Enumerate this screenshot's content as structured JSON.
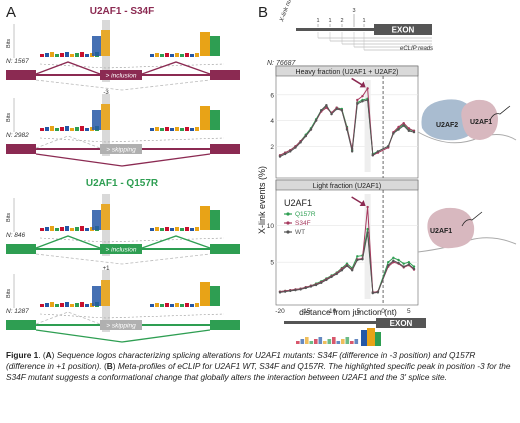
{
  "panel_a": {
    "letter": "A",
    "mutants": [
      {
        "title": "U2AF1 - S34F",
        "color": "#8b2a52",
        "tracks": [
          {
            "n_label": "N: 1567",
            "event": "> inclusion",
            "axis_label": "Bits",
            "highlight": ""
          },
          {
            "n_label": "N: 2982",
            "event": "> skipping",
            "axis_label": "Bits",
            "highlight": "-3"
          }
        ]
      },
      {
        "title": "U2AF1 - Q157R",
        "color": "#2e9e52",
        "tracks": [
          {
            "n_label": "N: 846",
            "event": "> inclusion",
            "axis_label": "Bits",
            "highlight": ""
          },
          {
            "n_label": "N: 1287",
            "event": "> skipping",
            "axis_label": "Bits",
            "highlight": "+1"
          }
        ]
      }
    ]
  },
  "panel_b": {
    "letter": "B",
    "xlink_number_label": "X-link number",
    "xlink_numbers": [
      "1",
      "1",
      "2",
      "3",
      "1"
    ],
    "exon_label": "EXON",
    "eclip_reads_label": "eCLIP reads",
    "n_label": "N: 76687",
    "ylabel": "X-link events (%)",
    "xlabel": "distance from junction (nt)",
    "legend_title": "U2AF1",
    "legend": [
      {
        "name": "Q157R",
        "color": "#2e9e52"
      },
      {
        "name": "S34F",
        "color": "#a6395e"
      },
      {
        "name": "WT",
        "color": "#555555"
      }
    ],
    "protein_labels": {
      "u2af2": "U2AF2",
      "u2af1_top": "U2AF1",
      "u2af1_bottom": "U2AF1"
    }
  },
  "chart_data": [
    {
      "type": "line",
      "title": "Heavy fraction (U2AF1 + U2AF2)",
      "xlabel": "distance from junction (nt)",
      "ylabel": "X-link events (%)",
      "xlim": [
        -20,
        6
      ],
      "ylim": [
        0,
        7
      ],
      "yticks": [
        2,
        4,
        6
      ],
      "x": [
        -20,
        -19,
        -18,
        -17,
        -16,
        -15,
        -14,
        -13,
        -12,
        -11,
        -10,
        -9,
        -8,
        -7,
        -6,
        -5,
        -4,
        -3,
        -2,
        -1,
        1,
        2,
        3,
        4,
        5,
        6
      ],
      "series": [
        {
          "name": "Q157R",
          "color": "#2e9e52",
          "values": [
            1.3,
            1.5,
            1.7,
            2.0,
            2.4,
            2.9,
            3.4,
            4.1,
            4.8,
            5.1,
            4.6,
            5.0,
            4.9,
            3.5,
            1.7,
            5.4,
            5.6,
            5.7,
            1.4,
            1.6,
            2.0,
            3.0,
            3.4,
            3.7,
            3.3,
            3.2
          ]
        },
        {
          "name": "S34F",
          "color": "#a6395e",
          "values": [
            1.3,
            1.5,
            1.7,
            2.0,
            2.4,
            2.8,
            3.3,
            4.0,
            4.7,
            5.0,
            4.6,
            5.0,
            4.8,
            3.4,
            1.8,
            5.6,
            5.9,
            6.5,
            1.3,
            1.5,
            1.9,
            3.1,
            3.5,
            3.8,
            3.4,
            3.2
          ]
        },
        {
          "name": "WT",
          "color": "#555555",
          "values": [
            1.2,
            1.4,
            1.6,
            1.9,
            2.3,
            2.8,
            3.3,
            4.0,
            4.8,
            5.2,
            4.5,
            4.9,
            4.8,
            3.3,
            1.6,
            5.3,
            5.5,
            5.6,
            1.3,
            1.6,
            2.0,
            3.0,
            3.3,
            3.6,
            3.2,
            3.1
          ]
        }
      ],
      "vline_x": 0,
      "highlight_x": -3
    },
    {
      "type": "line",
      "title": "Light fraction (U2AF1)",
      "xlabel": "distance from junction (nt)",
      "ylabel": "X-link events (%)",
      "xlim": [
        -20,
        6
      ],
      "ylim": [
        0,
        14
      ],
      "yticks": [
        5,
        10
      ],
      "xticks": [
        -20,
        -15,
        -10,
        -5,
        0,
        5
      ],
      "x": [
        -20,
        -19,
        -18,
        -17,
        -16,
        -15,
        -14,
        -13,
        -12,
        -11,
        -10,
        -9,
        -8,
        -7,
        -6,
        -5,
        -4,
        -3,
        -2,
        -1,
        1,
        2,
        3,
        4,
        5,
        6
      ],
      "series": [
        {
          "name": "Q157R",
          "color": "#2e9e52",
          "values": [
            1.0,
            1.1,
            1.2,
            1.3,
            1.4,
            1.6,
            1.8,
            2.1,
            2.4,
            2.8,
            3.2,
            3.6,
            4.2,
            4.8,
            4.2,
            5.8,
            5.9,
            9.5,
            0.9,
            1.0,
            5.0,
            5.6,
            5.3,
            4.8,
            5.0,
            4.4
          ]
        },
        {
          "name": "S34F",
          "color": "#a6395e",
          "values": [
            1.0,
            1.1,
            1.2,
            1.3,
            1.4,
            1.6,
            1.8,
            2.0,
            2.3,
            2.7,
            3.1,
            3.5,
            4.1,
            4.6,
            4.0,
            5.4,
            5.5,
            12.5,
            0.9,
            1.0,
            4.4,
            5.0,
            4.8,
            4.3,
            4.6,
            4.0
          ]
        },
        {
          "name": "WT",
          "color": "#555555",
          "values": [
            0.9,
            1.0,
            1.1,
            1.2,
            1.3,
            1.5,
            1.7,
            1.9,
            2.2,
            2.6,
            3.0,
            3.4,
            3.9,
            4.5,
            3.9,
            5.3,
            5.4,
            9.0,
            0.8,
            0.9,
            4.6,
            5.2,
            4.9,
            4.4,
            4.7,
            4.1
          ]
        }
      ],
      "vline_x": 0,
      "highlight_x": -3
    }
  ],
  "caption": {
    "figure_label": "Figure 1",
    "a_letter": "A",
    "a_text_1": "Sequence logos characterizing splicing alterations for U2AF1 mutants: S34F (difference in -3 position) and Q157R (difference in +1 position).",
    "b_letter": "B",
    "b_text_1": "Meta-profiles of eCLIP for U2AF1 WT, S34F and Q157R. The highlighted specific peak in position -3 for the S34F mutant suggests a conformational change that globally alters the interaction between U2AF1 and the 3' splice site."
  }
}
